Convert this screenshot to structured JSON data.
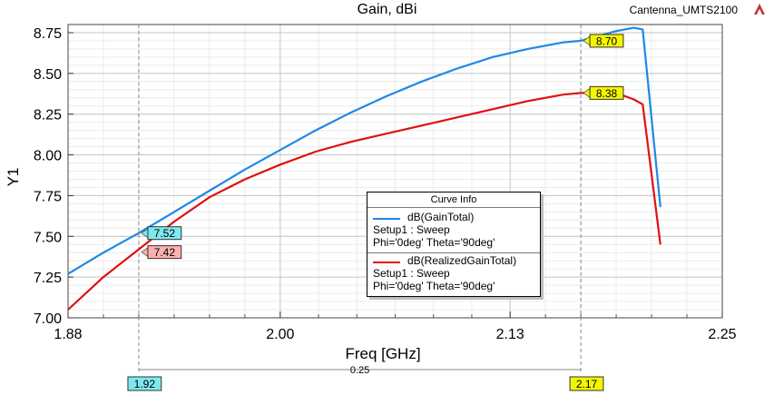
{
  "header": {
    "title": "Gain, dBi",
    "project": "Cantenna_UMTS2100",
    "project_icon": "ansys-logo-icon"
  },
  "legend": {
    "title": "Curve Info",
    "entries": [
      {
        "name": "dB(GainTotal)",
        "setup": "Setup1 : Sweep",
        "params": "Phi='0deg' Theta='90deg'",
        "color": "#1e88e5"
      },
      {
        "name": "dB(RealizedGainTotal)",
        "setup": "Setup1 : Sweep",
        "params": "Phi='0deg' Theta='90deg'",
        "color": "#e01010"
      }
    ]
  },
  "chart_data": {
    "type": "line",
    "title": "Gain, dBi",
    "xlabel": "Freq [GHz]",
    "ylabel": "Y1",
    "xlim": [
      1.88,
      2.25
    ],
    "ylim": [
      7.0,
      8.8
    ],
    "x_ticks": [
      1.88,
      2.0,
      2.13,
      2.25
    ],
    "x_tick_labels": [
      "1.88",
      "2.00",
      "2.13",
      "2.25"
    ],
    "y_ticks": [
      7.0,
      7.25,
      7.5,
      7.75,
      8.0,
      8.25,
      8.5,
      8.75
    ],
    "y_tick_labels": [
      "7.00",
      "7.25",
      "7.50",
      "7.75",
      "8.00",
      "8.25",
      "8.50",
      "8.75"
    ],
    "grid": true,
    "series": [
      {
        "name": "dB(GainTotal)",
        "color": "#1e88e5",
        "x": [
          1.88,
          1.9,
          1.92,
          1.94,
          1.96,
          1.98,
          2.0,
          2.02,
          2.04,
          2.06,
          2.08,
          2.1,
          2.12,
          2.14,
          2.16,
          2.17,
          2.19,
          2.2,
          2.205,
          2.215
        ],
        "y": [
          7.27,
          7.4,
          7.52,
          7.65,
          7.78,
          7.91,
          8.03,
          8.15,
          8.26,
          8.36,
          8.45,
          8.53,
          8.6,
          8.65,
          8.69,
          8.7,
          8.76,
          8.78,
          8.77,
          7.68
        ]
      },
      {
        "name": "dB(RealizedGainTotal)",
        "color": "#e01010",
        "x": [
          1.88,
          1.9,
          1.92,
          1.94,
          1.96,
          1.98,
          2.0,
          2.02,
          2.04,
          2.06,
          2.08,
          2.1,
          2.12,
          2.14,
          2.16,
          2.17,
          2.19,
          2.2,
          2.205,
          2.215
        ],
        "y": [
          7.05,
          7.25,
          7.42,
          7.59,
          7.74,
          7.85,
          7.94,
          8.02,
          8.08,
          8.13,
          8.18,
          8.23,
          8.28,
          8.33,
          8.37,
          8.38,
          8.38,
          8.34,
          8.31,
          7.45
        ]
      }
    ],
    "markers": [
      {
        "x": 1.92,
        "label": "1.92",
        "color": "#7fe8ee",
        "points": [
          {
            "series": 0,
            "y": 7.52,
            "label": "7.52"
          },
          {
            "series": 1,
            "y": 7.42,
            "label": "7.42"
          }
        ]
      },
      {
        "x": 2.17,
        "label": "2.17",
        "color": "#f5f500",
        "points": [
          {
            "series": 0,
            "y": 8.7,
            "label": "8.70"
          },
          {
            "series": 1,
            "y": 8.38,
            "label": "8.38"
          }
        ]
      }
    ],
    "delta_label": "0.25"
  }
}
